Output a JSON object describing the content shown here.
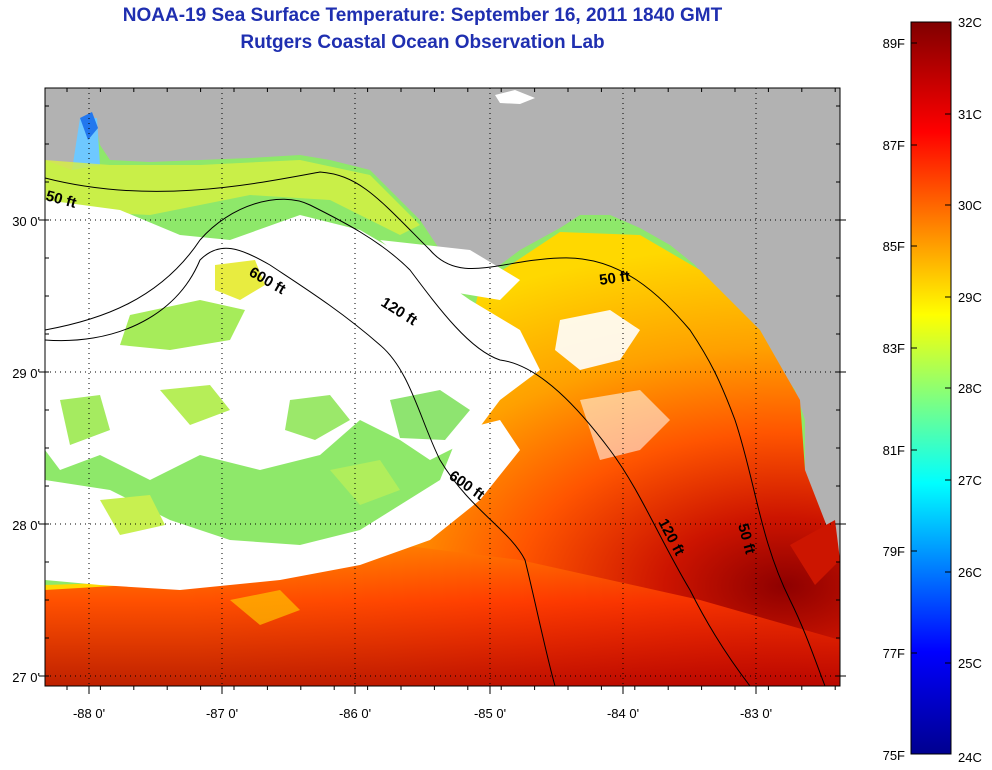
{
  "title": {
    "line1": "NOAA-19 Sea Surface Temperature:  September 16, 2011 1840 GMT",
    "line2": "Rutgers Coastal Ocean Observation Lab"
  },
  "map": {
    "lon_labels": [
      "-88 0'",
      "-87 0'",
      "-86 0'",
      "-85 0'",
      "-84 0'",
      "-83 0'"
    ],
    "lat_labels": [
      "30 0'",
      "29 0'",
      "28 0'",
      "27 0'"
    ],
    "contour_labels": {
      "c50_west": "50 ft",
      "c600_north": "600 ft",
      "c120_north": "120 ft",
      "c50_east": "50 ft",
      "c600_south": "600 ft",
      "c120_south": "120 ft",
      "c50_south": "50 ft"
    },
    "land_color": "#b2b2b2",
    "cloud_color": "#ffffff"
  },
  "colorbar": {
    "celsius": [
      "32C",
      "31C",
      "30C",
      "29C",
      "28C",
      "27C",
      "26C",
      "25C",
      "24C"
    ],
    "fahrenheit": [
      "89F",
      "87F",
      "85F",
      "83F",
      "81F",
      "79F",
      "77F",
      "75F"
    ],
    "colors": [
      "#00008f",
      "#0000ff",
      "#00ffff",
      "#ffff00",
      "#ff0000",
      "#800000"
    ]
  }
}
